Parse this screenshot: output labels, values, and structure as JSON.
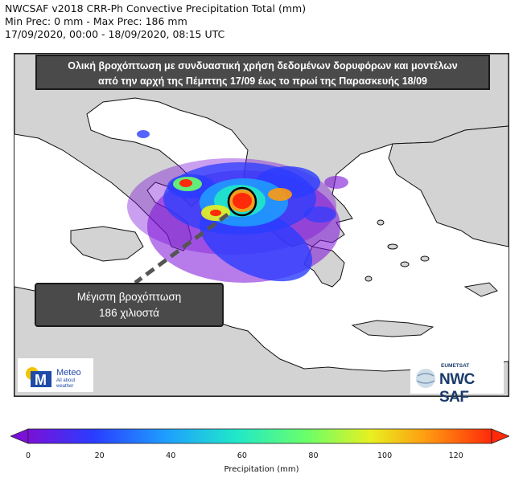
{
  "header": {
    "line1": "NWCSAF v2018 CRR-Ph Convective Precipitation Total (mm)",
    "line2": "Min Prec: 0 mm - Max Prec: 186 mm",
    "line3": "17/09/2020, 00:00 - 18/09/2020, 08:15 UTC"
  },
  "annotation_title": {
    "line1": "Ολική βροχόπτωση με συνδυαστική χρήση δεδομένων δορυφόρων και μοντέλων",
    "line2": "από την αρχή της Πέμπτης 17/09 έως το πρωί της Παρασκευής 18/09"
  },
  "max_box": {
    "line1": "Μέγιστη βροχόπτωση",
    "line2": "186 χιλιοστά"
  },
  "logos": {
    "meteo_name": "Meteo",
    "meteo_sub1": "All about",
    "meteo_sub2": "weather",
    "eumetsat": "EUMETSAT",
    "nwcsaf": "NWC SAF"
  },
  "colorbar": {
    "label": "Precipitation (mm)",
    "ticks": [
      "0",
      "20",
      "40",
      "60",
      "80",
      "100",
      "120"
    ],
    "colors": [
      "#7b10d8",
      "#2a3cff",
      "#1ea0ff",
      "#20e8c8",
      "#6aff6a",
      "#e8f020",
      "#ff9a10",
      "#ff2a0a"
    ]
  },
  "colors": {
    "land": "#d3d3d3",
    "sea": "#ffffff",
    "box": "#4a4a4a"
  }
}
